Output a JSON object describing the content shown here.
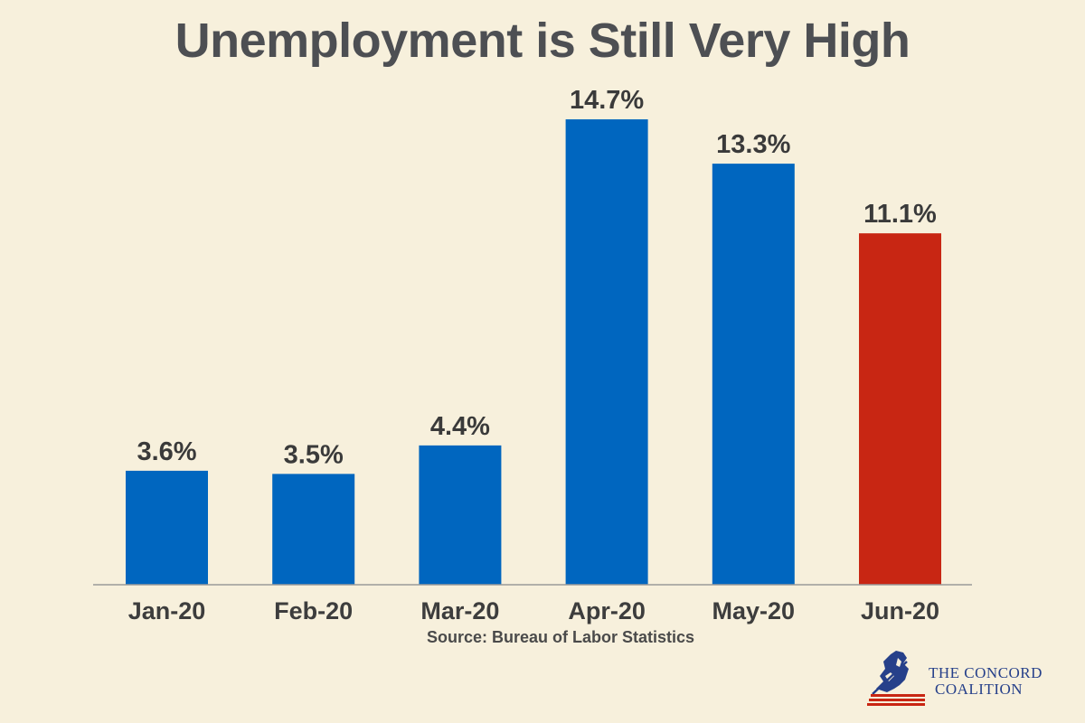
{
  "chart_data": {
    "type": "bar",
    "title": "Unemployment is Still Very High",
    "categories": [
      "Jan-20",
      "Feb-20",
      "Mar-20",
      "Apr-20",
      "May-20",
      "Jun-20"
    ],
    "values": [
      3.6,
      3.5,
      4.4,
      14.7,
      13.3,
      11.1
    ],
    "data_labels": [
      "3.6%",
      "3.5%",
      "4.4%",
      "14.7%",
      "13.3%",
      "11.1%"
    ],
    "xlabel": "",
    "ylabel": "",
    "ylim": [
      0,
      15.0
    ],
    "grid": false,
    "legend": "none",
    "bar_colors": [
      "#0066bf",
      "#0066bf",
      "#0066bf",
      "#0066bf",
      "#0066bf",
      "#c82613"
    ],
    "source": "Source: Bureau of Labor Statistics"
  },
  "branding": {
    "line1": "The Concord",
    "line2": "Coalition",
    "logo_icon": "minuteman-icon",
    "colors": {
      "navy": "#26408a",
      "red": "#c82613"
    }
  },
  "colors": {
    "background": "#f7f0dc",
    "title": "#4d4f53",
    "axis": "#9a9a9a"
  }
}
